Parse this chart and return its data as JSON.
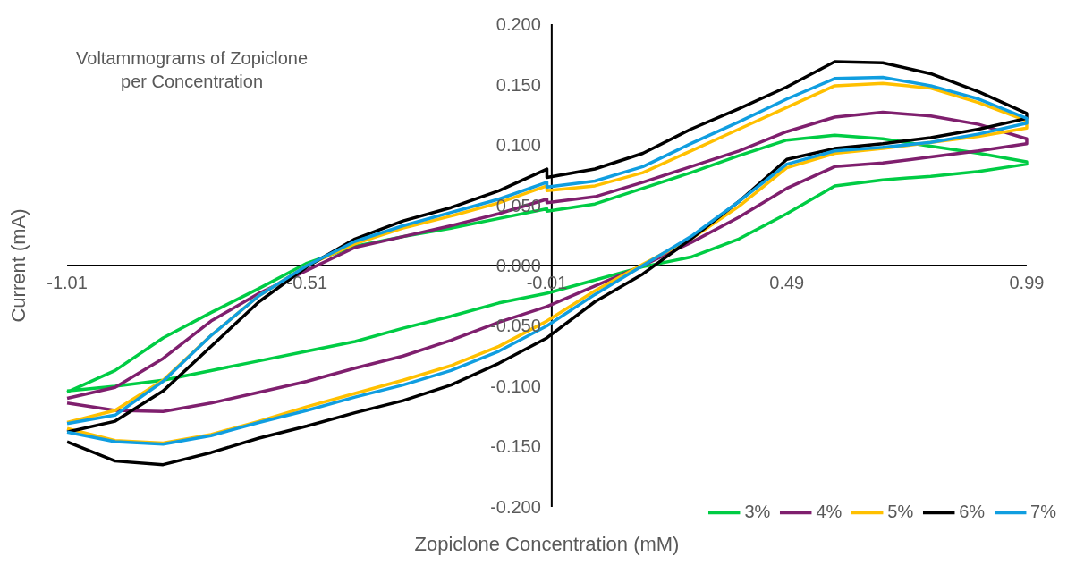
{
  "chart_data": {
    "type": "line",
    "title": "Voltammograms of Zopiclone per Concentration",
    "xlabel": "Zopiclone Concentration (mM)",
    "ylabel": "Current (mA)",
    "x": [
      -1.01,
      -0.91,
      -0.81,
      -0.71,
      -0.61,
      -0.51,
      -0.41,
      -0.31,
      -0.21,
      -0.11,
      -0.01,
      -0.01,
      0.09,
      0.19,
      0.29,
      0.39,
      0.49,
      0.59,
      0.69,
      0.79,
      0.89,
      0.99,
      0.99,
      0.89,
      0.79,
      0.69,
      0.59,
      0.49,
      0.39,
      0.29,
      0.19,
      0.09,
      -0.01,
      -0.11,
      -0.21,
      -0.31,
      -0.41,
      -0.51,
      -0.61,
      -0.71,
      -0.81,
      -0.91,
      -1.01
    ],
    "series": [
      {
        "name": "3%",
        "color": "#00cc44",
        "values": [
          -0.105,
          -0.087,
          -0.06,
          -0.039,
          -0.019,
          0.002,
          0.016,
          0.024,
          0.031,
          0.039,
          0.047,
          0.045,
          0.051,
          0.064,
          0.077,
          0.091,
          0.104,
          0.108,
          0.105,
          0.099,
          0.093,
          0.086,
          0.084,
          0.078,
          0.074,
          0.071,
          0.066,
          0.043,
          0.022,
          0.007,
          -0.001,
          -0.012,
          -0.023,
          -0.031,
          -0.042,
          -0.052,
          -0.063,
          -0.071,
          -0.079,
          -0.087,
          -0.095,
          -0.1,
          -0.104
        ]
      },
      {
        "name": "4%",
        "color": "#7f1f6e",
        "values": [
          -0.11,
          -0.101,
          -0.077,
          -0.046,
          -0.023,
          -0.004,
          0.015,
          0.024,
          0.033,
          0.043,
          0.055,
          0.052,
          0.057,
          0.069,
          0.082,
          0.095,
          0.111,
          0.123,
          0.127,
          0.124,
          0.117,
          0.105,
          0.101,
          0.095,
          0.09,
          0.085,
          0.082,
          0.064,
          0.04,
          0.019,
          0.0,
          -0.017,
          -0.034,
          -0.047,
          -0.062,
          -0.075,
          -0.085,
          -0.096,
          -0.105,
          -0.114,
          -0.121,
          -0.12,
          -0.114
        ]
      },
      {
        "name": "5%",
        "color": "#ffc000",
        "values": [
          -0.13,
          -0.12,
          -0.095,
          -0.058,
          -0.025,
          0.0,
          0.018,
          0.031,
          0.041,
          0.052,
          0.066,
          0.062,
          0.066,
          0.077,
          0.095,
          0.113,
          0.131,
          0.149,
          0.151,
          0.147,
          0.135,
          0.12,
          0.114,
          0.107,
          0.102,
          0.097,
          0.093,
          0.081,
          0.049,
          0.022,
          0.001,
          -0.021,
          -0.046,
          -0.067,
          -0.083,
          -0.095,
          -0.106,
          -0.117,
          -0.129,
          -0.14,
          -0.147,
          -0.145,
          -0.135
        ]
      },
      {
        "name": "6%",
        "color": "#000000",
        "values": [
          -0.138,
          -0.129,
          -0.104,
          -0.067,
          -0.03,
          -0.001,
          0.022,
          0.037,
          0.048,
          0.062,
          0.08,
          0.073,
          0.08,
          0.093,
          0.113,
          0.13,
          0.148,
          0.169,
          0.168,
          0.159,
          0.144,
          0.126,
          0.122,
          0.113,
          0.106,
          0.101,
          0.097,
          0.088,
          0.053,
          0.022,
          -0.007,
          -0.03,
          -0.06,
          -0.081,
          -0.099,
          -0.112,
          -0.122,
          -0.133,
          -0.143,
          -0.155,
          -0.165,
          -0.162,
          -0.146
        ]
      },
      {
        "name": "7%",
        "color": "#109ee0",
        "values": [
          -0.131,
          -0.124,
          -0.096,
          -0.058,
          -0.025,
          0.0,
          0.02,
          0.033,
          0.044,
          0.055,
          0.069,
          0.065,
          0.07,
          0.082,
          0.101,
          0.119,
          0.138,
          0.155,
          0.156,
          0.149,
          0.138,
          0.122,
          0.118,
          0.109,
          0.102,
          0.098,
          0.095,
          0.084,
          0.053,
          0.024,
          0.0,
          -0.024,
          -0.05,
          -0.071,
          -0.087,
          -0.099,
          -0.109,
          -0.12,
          -0.13,
          -0.141,
          -0.148,
          -0.146,
          -0.138
        ]
      }
    ],
    "xlim": [
      -1.01,
      0.99
    ],
    "xticks": [
      -1.01,
      -0.51,
      -0.01,
      0.49,
      0.99
    ],
    "ylim": [
      -0.2,
      0.2
    ],
    "yticks": [
      {
        "value": -0.2,
        "label": "-0.200"
      },
      {
        "value": -0.15,
        "label": "-0.150"
      },
      {
        "value": -0.1,
        "label": "-0.100"
      },
      {
        "value": -0.05,
        "label": "-0.050"
      },
      {
        "value": 0,
        "label": "0.000"
      },
      {
        "value": 0.05,
        "label": "0.050"
      },
      {
        "value": 0.1,
        "label": "0.100"
      },
      {
        "value": 0.15,
        "label": "0.150"
      },
      {
        "value": 0.2,
        "label": "0.200"
      }
    ],
    "legend": "bottom right"
  }
}
